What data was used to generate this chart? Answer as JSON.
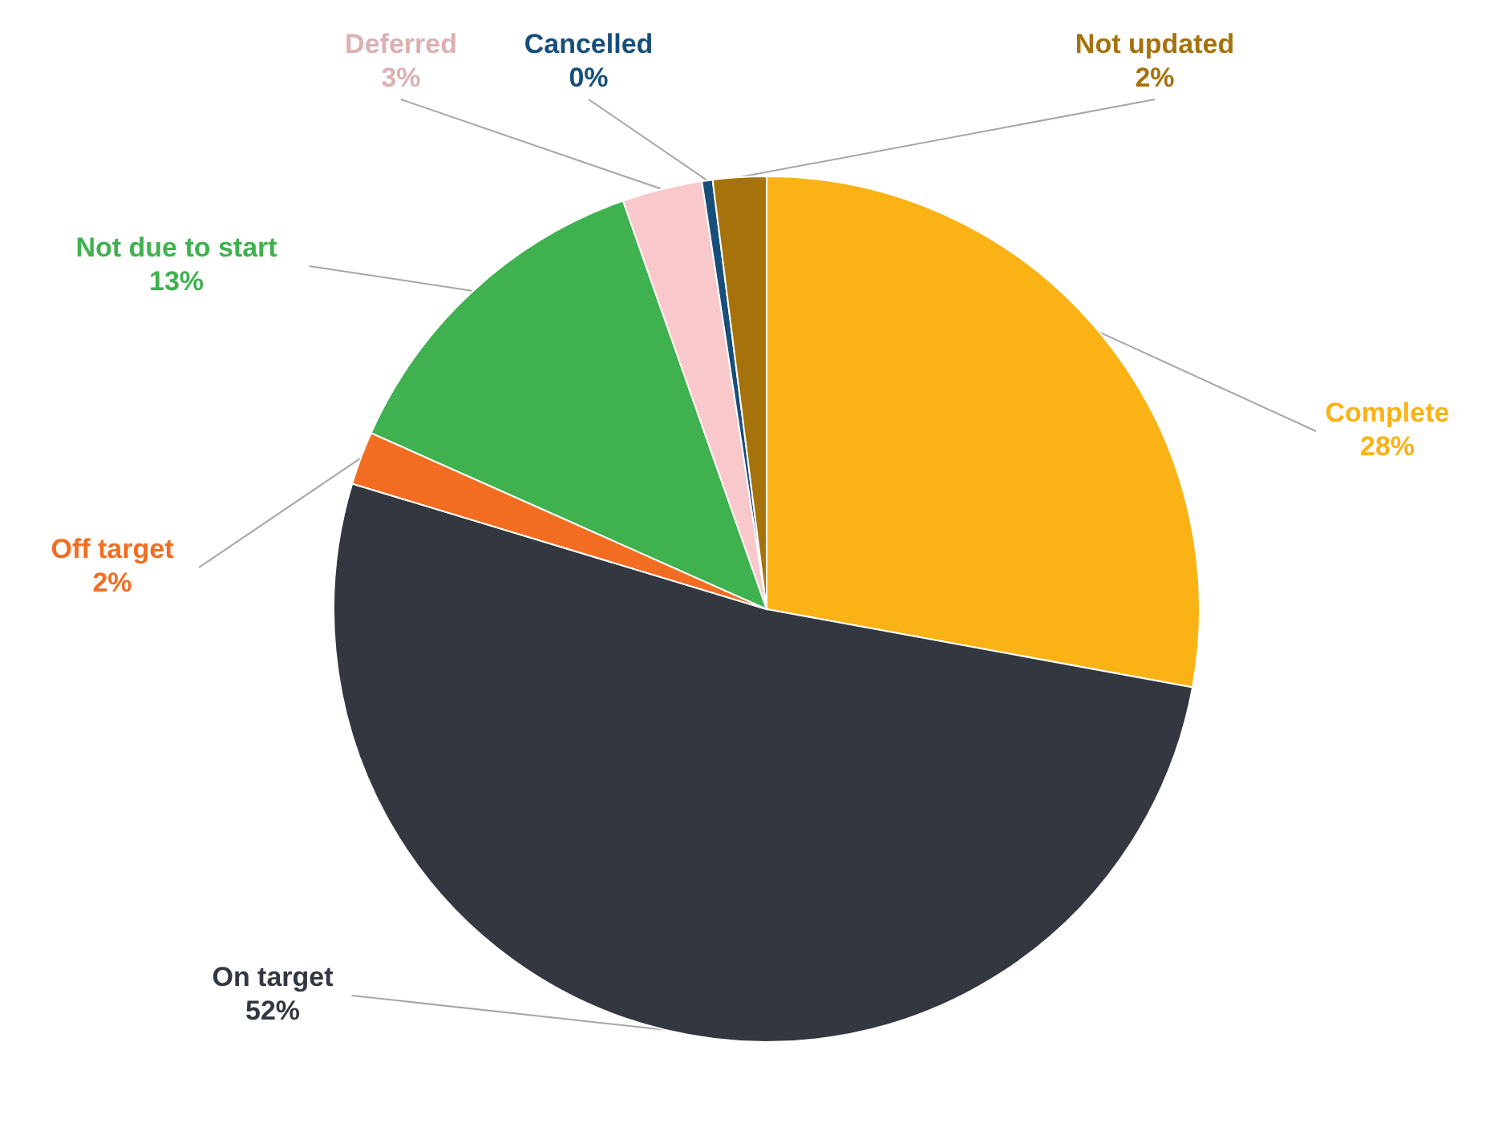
{
  "chart_data": {
    "type": "pie",
    "categories": [
      "Complete",
      "On target",
      "Off target",
      "Not due to start",
      "Deferred",
      "Cancelled",
      "Not updated"
    ],
    "values": [
      28,
      52,
      2,
      13,
      3,
      0.4,
      2
    ],
    "value_labels": [
      "28%",
      "52%",
      "2%",
      "13%",
      "3%",
      "0%",
      "2%"
    ],
    "colors": [
      "#fbb215",
      "#333740",
      "#f26d21",
      "#3fb14f",
      "#f8c8cb",
      "#174f7a",
      "#a5720b"
    ]
  }
}
